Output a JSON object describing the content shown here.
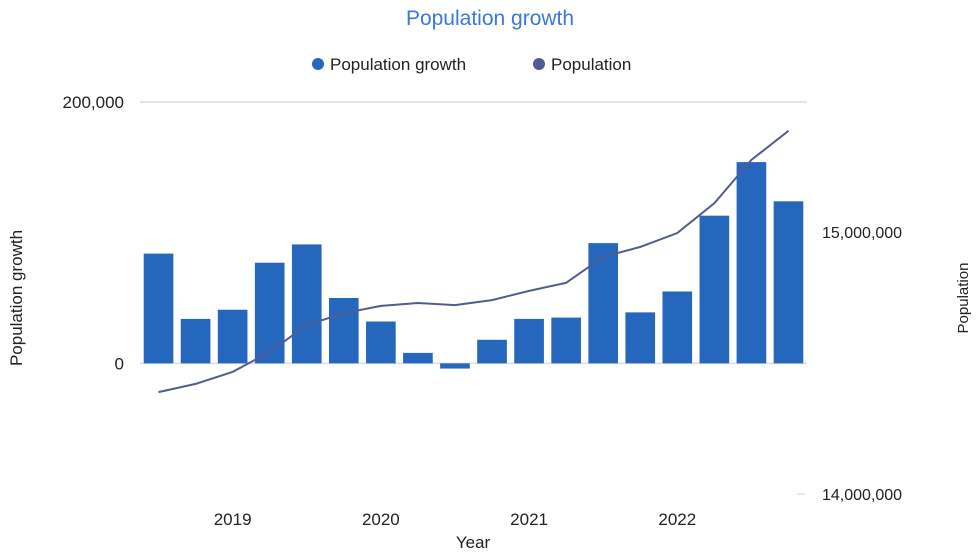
{
  "chart_data": {
    "type": "bar+line",
    "title": "Population growth",
    "xlabel": "Year",
    "ylabel_left": "Population growth",
    "ylabel_right": "Population",
    "x_tick_labels": [
      {
        "index": 2,
        "label": "2019"
      },
      {
        "index": 6,
        "label": "2020"
      },
      {
        "index": 10,
        "label": "2021"
      },
      {
        "index": 14,
        "label": "2022"
      }
    ],
    "y_left_ticks": [
      {
        "value": 200000,
        "label": "200,000"
      },
      {
        "value": 0,
        "label": "0"
      }
    ],
    "y_right_ticks": [
      {
        "value": 15000000,
        "label": "15,000,000"
      },
      {
        "value": 14000000,
        "label": "14,000,000"
      }
    ],
    "ylim_left": [
      -100000,
      200000
    ],
    "ylim_right": [
      14000000,
      15496000
    ],
    "grid": true,
    "legend": "top",
    "series": [
      {
        "name": "Population growth",
        "type": "bar",
        "axis": "left",
        "color": "#2567bd",
        "values": [
          84000,
          34000,
          41000,
          77000,
          91000,
          50000,
          32000,
          8000,
          -4000,
          18000,
          34000,
          35000,
          92000,
          39000,
          55000,
          113000,
          154000,
          124000
        ]
      },
      {
        "name": "Population",
        "type": "line",
        "axis": "right",
        "color": "#515c8f",
        "values": [
          14389000,
          14420000,
          14466000,
          14542000,
          14645000,
          14690000,
          14718000,
          14729000,
          14721000,
          14740000,
          14775000,
          14806000,
          14905000,
          14943000,
          14996000,
          15110000,
          15275000,
          15386000
        ]
      }
    ],
    "title_color": "#3c78d8"
  }
}
